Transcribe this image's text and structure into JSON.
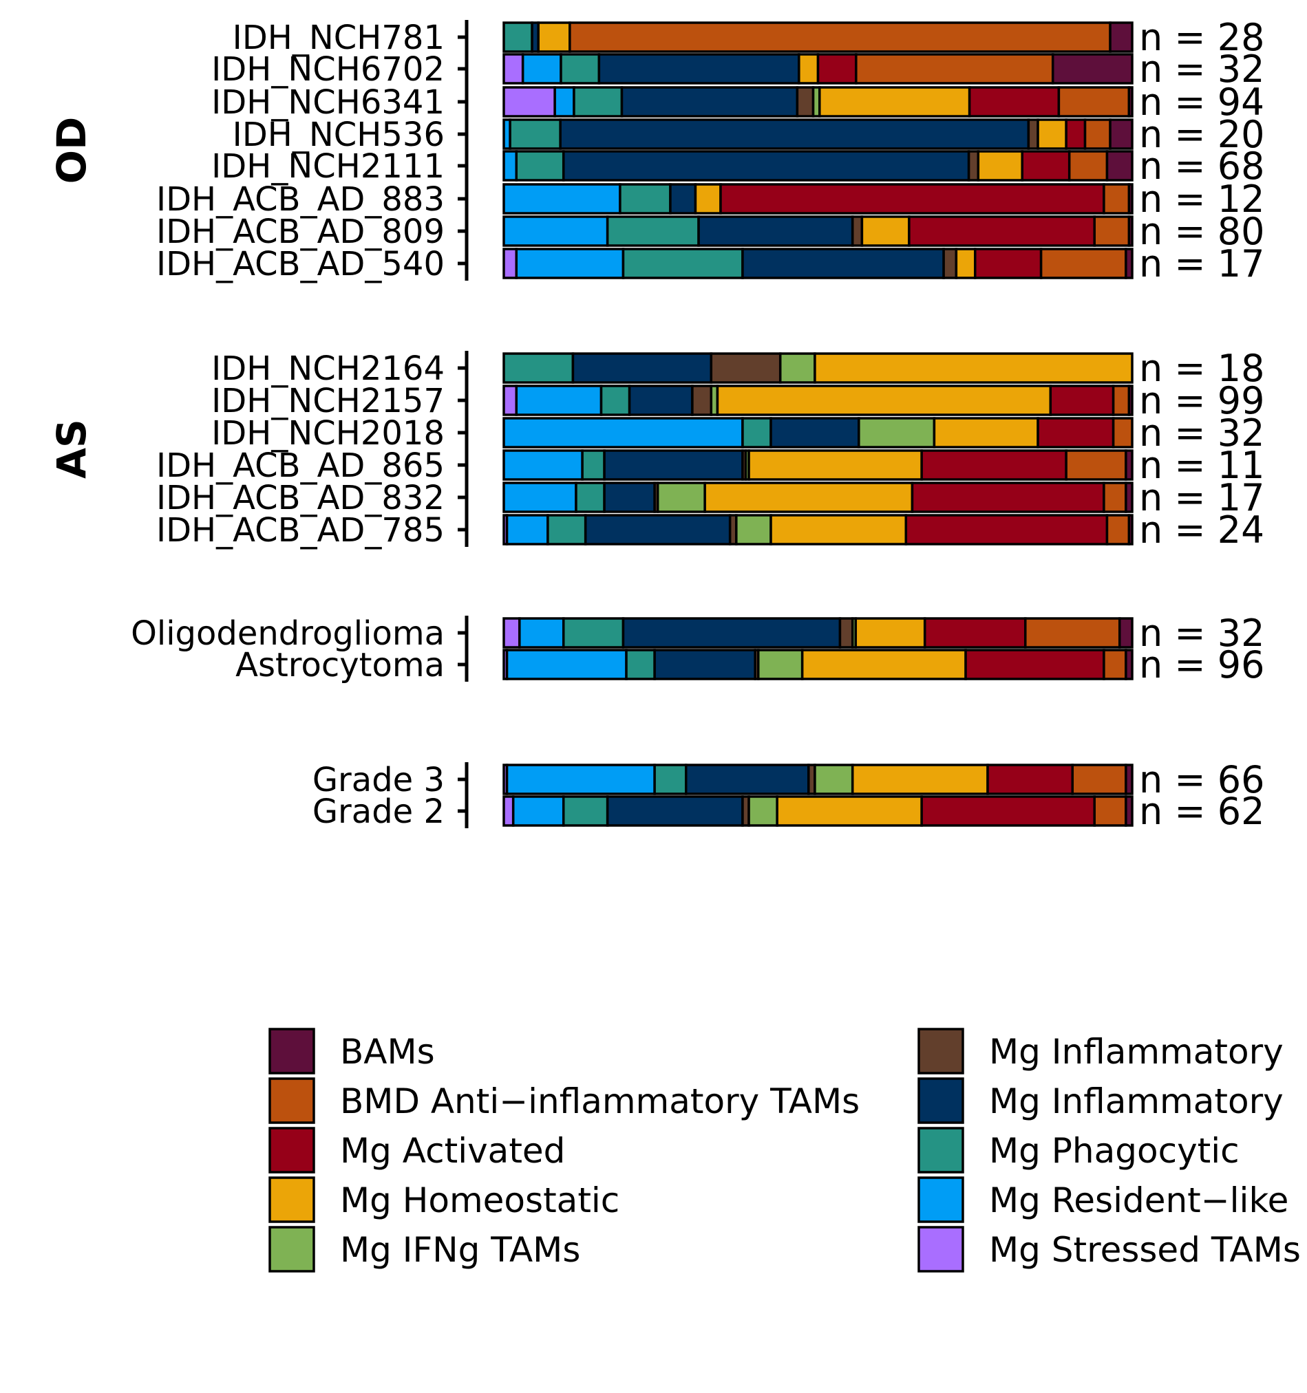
{
  "chart_data": {
    "type": "bar",
    "orientation": "horizontal",
    "stacked": "proportional",
    "categories_order": [
      "BAMs",
      "BMD Anti−inflammatory TAMs",
      "Mg Activated",
      "Mg Homeostatic",
      "Mg IFNg TAMs",
      "Mg Inflammatory",
      "Mg Inflammatory",
      "Mg Phagocytic",
      "Mg Resident−like",
      "Mg Stressed TAMs"
    ],
    "stack_order": [
      "Mg Stressed TAMs",
      "Mg Resident−like",
      "Mg Phagocytic",
      "Mg Inflammatory (navy)",
      "Mg Inflammatory (brown)",
      "Mg IFNg TAMs",
      "Mg Homeostatic",
      "Mg Activated",
      "BMD Anti−inflammatory TAMs",
      "BAMs"
    ],
    "colors": [
      "#A96EFF",
      "#009DF5",
      "#259384",
      "#00315F",
      "#623F2C",
      "#7FB254",
      "#EBA508",
      "#960018",
      "#BC510E",
      "#5E0F3B"
    ],
    "legend": [
      {
        "label": "BAMs",
        "color": "#5E0F3B"
      },
      {
        "label": "BMD Anti−inflammatory TAMs",
        "color": "#BC510E"
      },
      {
        "label": "Mg Activated",
        "color": "#960018"
      },
      {
        "label": "Mg Homeostatic",
        "color": "#EBA508"
      },
      {
        "label": "Mg IFNg TAMs",
        "color": "#7FB254"
      },
      {
        "label": "Mg Inflammatory",
        "color": "#623F2C"
      },
      {
        "label": "Mg Inflammatory",
        "color": "#00315F"
      },
      {
        "label": "Mg Phagocytic",
        "color": "#259384"
      },
      {
        "label": "Mg Resident−like",
        "color": "#009DF5"
      },
      {
        "label": "Mg Stressed TAMs",
        "color": "#A96EFF"
      }
    ],
    "legend_placement": "bottom",
    "grid": false,
    "xlim": [
      0,
      1
    ],
    "groups": [
      {
        "label": "OD",
        "rows": [
          {
            "name": "IDH_NCH781",
            "n": "n = 28",
            "values": [
              0,
              0,
              0.045,
              0.01,
              0,
              0,
              0.05,
              0,
              0.86,
              0.035
            ]
          },
          {
            "name": "IDH_NCH6702",
            "n": "n = 32",
            "values": [
              0.03,
              0.06,
              0.06,
              0.315,
              0,
              0,
              0.03,
              0.06,
              0.31,
              0.125
            ]
          },
          {
            "name": "IDH_NCH6341",
            "n": "n = 94",
            "values": [
              0.08,
              0.03,
              0.075,
              0.275,
              0.025,
              0.01,
              0.235,
              0.14,
              0.11,
              0.005
            ]
          },
          {
            "name": "IDH_NCH536",
            "n": "n = 20",
            "values": [
              0,
              0.01,
              0.08,
              0.745,
              0.015,
              0,
              0.045,
              0.03,
              0.04,
              0.035
            ]
          },
          {
            "name": "IDH_NCH2111",
            "n": "n = 68",
            "values": [
              0,
              0.02,
              0.075,
              0.645,
              0.015,
              0,
              0.07,
              0.075,
              0.06,
              0.04
            ]
          },
          {
            "name": "IDH_ACB_AD_883",
            "n": "n = 12",
            "values": [
              0,
              0.185,
              0.08,
              0.04,
              0,
              0,
              0.04,
              0.61,
              0.04,
              0.005
            ]
          },
          {
            "name": "IDH_ACB_AD_809",
            "n": "n = 80",
            "values": [
              0,
              0.165,
              0.145,
              0.245,
              0.015,
              0,
              0.075,
              0.295,
              0.055,
              0.005
            ]
          },
          {
            "name": "IDH_ACB_AD_540",
            "n": "n = 17",
            "values": [
              0.02,
              0.17,
              0.19,
              0.32,
              0.02,
              0,
              0.03,
              0.105,
              0.135,
              0.01
            ]
          }
        ]
      },
      {
        "label": "AS",
        "rows": [
          {
            "name": "IDH_NCH2164",
            "n": "n = 18",
            "values": [
              0,
              0,
              0.11,
              0.22,
              0.11,
              0.055,
              0.505,
              0,
              0,
              0
            ]
          },
          {
            "name": "IDH_NCH2157",
            "n": "n = 99",
            "values": [
              0.02,
              0.135,
              0.045,
              0.1,
              0.03,
              0.01,
              0.53,
              0.1,
              0.025,
              0.005
            ]
          },
          {
            "name": "IDH_NCH2018",
            "n": "n = 32",
            "values": [
              0,
              0.38,
              0.045,
              0.14,
              0,
              0.12,
              0.165,
              0.12,
              0.03,
              0
            ]
          },
          {
            "name": "IDH_ACB_AD_865",
            "n": "n = 11",
            "values": [
              0,
              0.125,
              0.035,
              0.22,
              0.005,
              0.005,
              0.275,
              0.23,
              0.095,
              0.01
            ]
          },
          {
            "name": "IDH_ACB_AD_832",
            "n": "n = 17",
            "values": [
              0,
              0.115,
              0.045,
              0.08,
              0.005,
              0.075,
              0.33,
              0.305,
              0.035,
              0.01
            ]
          },
          {
            "name": "IDH_ACB_AD_785",
            "n": "n = 24",
            "values": [
              0.005,
              0.065,
              0.06,
              0.23,
              0.01,
              0.055,
              0.215,
              0.32,
              0.035,
              0.005
            ]
          }
        ]
      },
      {
        "label": "",
        "rows": [
          {
            "name": "Oligodendroglioma",
            "n": "n = 32",
            "values": [
              0.025,
              0.07,
              0.095,
              0.345,
              0.02,
              0.005,
              0.11,
              0.16,
              0.15,
              0.02
            ]
          },
          {
            "name": "Astrocytoma",
            "n": "n = 96",
            "values": [
              0.005,
              0.19,
              0.045,
              0.16,
              0.005,
              0.07,
              0.26,
              0.22,
              0.035,
              0.01
            ]
          }
        ]
      },
      {
        "label": "",
        "rows": [
          {
            "name": "Grade 3",
            "n": "n = 66",
            "values": [
              0.005,
              0.235,
              0.05,
              0.195,
              0.01,
              0.06,
              0.215,
              0.135,
              0.085,
              0.01
            ]
          },
          {
            "name": "Grade 2",
            "n": "n = 62",
            "values": [
              0.015,
              0.08,
              0.07,
              0.215,
              0.01,
              0.045,
              0.23,
              0.275,
              0.05,
              0.01
            ]
          }
        ]
      }
    ]
  }
}
